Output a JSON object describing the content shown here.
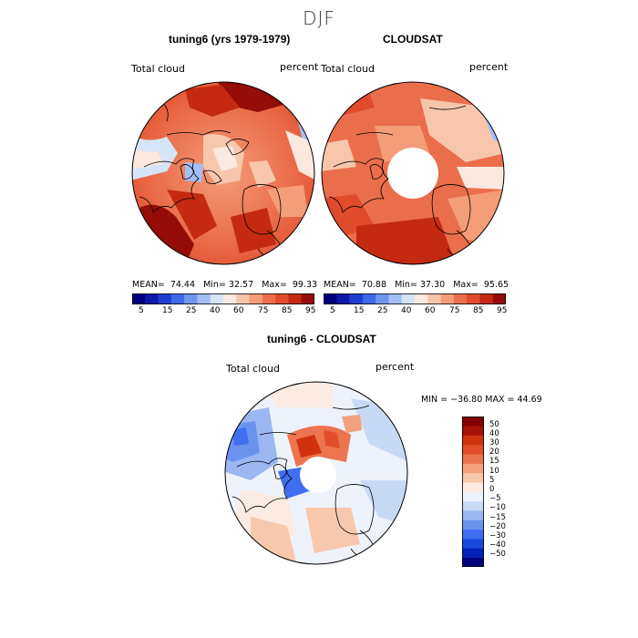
{
  "page_title": "DJF",
  "panels": [
    {
      "title": "tuning6 (yrs 1979-1979)",
      "var_label": "Total cloud",
      "units": "percent",
      "stats": {
        "mean_label": "MEAN=",
        "mean": "74.44",
        "min_label": "Min=",
        "min": "32.57",
        "max_label": "Max=",
        "max": "99.33"
      }
    },
    {
      "title": "CLOUDSAT",
      "var_label": "Total cloud",
      "units": "percent",
      "stats": {
        "mean_label": "MEAN=",
        "mean": "70.88",
        "min_label": "Min=",
        "min": "37.30",
        "max_label": "Max=",
        "max": "95.65"
      }
    },
    {
      "title": "tuning6 - CLOUDSAT",
      "var_label": "Total cloud",
      "units": "percent",
      "minmax": "MIN = −36.80 MAX =  44.69"
    }
  ],
  "colorbar_abs": {
    "colors": [
      "#00007f",
      "#0b1aa8",
      "#1f3fd0",
      "#3d6ae6",
      "#6f95ee",
      "#a3bff5",
      "#d6e4f8",
      "#fbe8de",
      "#f8c6ab",
      "#f39d79",
      "#eb6e4c",
      "#e04b2b",
      "#c42a12",
      "#950d06"
    ],
    "tick_labels": [
      "5",
      "15",
      "25",
      "40",
      "60",
      "75",
      "85",
      "95"
    ]
  },
  "colorbar_diff": {
    "colors": [
      "#00007f",
      "#0520b8",
      "#1a49e0",
      "#3f6ef0",
      "#6a93f0",
      "#9ab7f2",
      "#c8d9f6",
      "#eef2fb",
      "#fcebe2",
      "#f8c8ad",
      "#f3a07d",
      "#ec744f",
      "#e24e2c",
      "#d0320f",
      "#a61106",
      "#830000"
    ],
    "tick_labels": [
      "50",
      "40",
      "30",
      "20",
      "15",
      "10",
      "5",
      "0",
      "−5",
      "−10",
      "−15",
      "−20",
      "−30",
      "−40",
      "−50"
    ]
  },
  "map_data": [
    {
      "projection": "north-polar-stereographic",
      "field": "Total cloud",
      "units": "percent",
      "mean": 74.44,
      "min": 32.57,
      "max": 99.33
    },
    {
      "projection": "north-polar-stereographic",
      "field": "Total cloud",
      "units": "percent",
      "mean": 70.88,
      "min": 37.3,
      "max": 95.65,
      "missing_region": "pole"
    },
    {
      "projection": "north-polar-stereographic",
      "field": "Total cloud difference",
      "units": "percent",
      "min": -36.8,
      "max": 44.69,
      "missing_region": "pole"
    }
  ]
}
